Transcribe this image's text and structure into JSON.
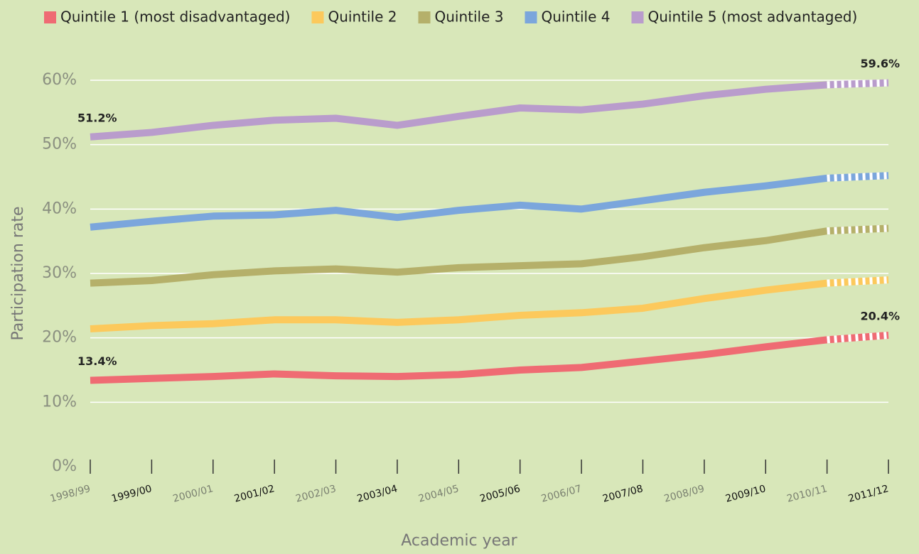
{
  "chart_data": {
    "type": "line",
    "x_label": "Academic year",
    "y_label": "Participation rate",
    "categories": [
      "1998/99",
      "1999/00",
      "2000/01",
      "2001/02",
      "2002/03",
      "2003/04",
      "2004/05",
      "2005/06",
      "2006/07",
      "2007/08",
      "2008/09",
      "2009/10",
      "2010/11",
      "2011/12"
    ],
    "ylim": [
      0,
      60
    ],
    "yticks": [
      {
        "value": 0,
        "label": "0%"
      },
      {
        "value": 10,
        "label": "10%"
      },
      {
        "value": 20,
        "label": "20%"
      },
      {
        "value": 30,
        "label": "30%"
      },
      {
        "value": 40,
        "label": "40%"
      },
      {
        "value": 50,
        "label": "50%"
      },
      {
        "value": 60,
        "label": "60%"
      }
    ],
    "grid": true,
    "dashed_last_segment": true,
    "legend": "top",
    "series": [
      {
        "name": "Quintile 1 (most disadvantaged)",
        "color": "#ef6b73",
        "values": [
          13.4,
          13.7,
          14.0,
          14.4,
          14.1,
          14.0,
          14.3,
          15.0,
          15.4,
          16.4,
          17.4,
          18.6,
          19.7,
          20.4
        ],
        "value_labels": [
          "13.4%",
          null,
          null,
          null,
          null,
          null,
          null,
          null,
          null,
          null,
          null,
          null,
          null,
          "20.4%"
        ]
      },
      {
        "name": "Quintile 2",
        "color": "#fcc95c",
        "values": [
          21.4,
          21.9,
          22.2,
          22.8,
          22.8,
          22.4,
          22.8,
          23.5,
          23.9,
          24.6,
          26.1,
          27.4,
          28.5,
          29.0
        ]
      },
      {
        "name": "Quintile 3",
        "color": "#b5b06a",
        "values": [
          28.5,
          28.9,
          29.8,
          30.4,
          30.7,
          30.2,
          30.9,
          31.2,
          31.5,
          32.6,
          34.0,
          35.1,
          36.6,
          37.0
        ]
      },
      {
        "name": "Quintile 4",
        "color": "#7ba6dc",
        "values": [
          37.2,
          38.1,
          38.9,
          39.1,
          39.8,
          38.7,
          39.8,
          40.6,
          40.0,
          41.3,
          42.6,
          43.6,
          44.8,
          45.2
        ]
      },
      {
        "name": "Quintile 5 (most advantaged)",
        "color": "#b99ccc",
        "values": [
          51.2,
          51.9,
          53.0,
          53.8,
          54.1,
          53.0,
          54.4,
          55.7,
          55.4,
          56.3,
          57.6,
          58.6,
          59.3,
          59.6
        ],
        "value_labels": [
          "51.2%",
          null,
          null,
          null,
          null,
          null,
          null,
          null,
          null,
          null,
          null,
          null,
          null,
          "59.6%"
        ]
      }
    ]
  }
}
